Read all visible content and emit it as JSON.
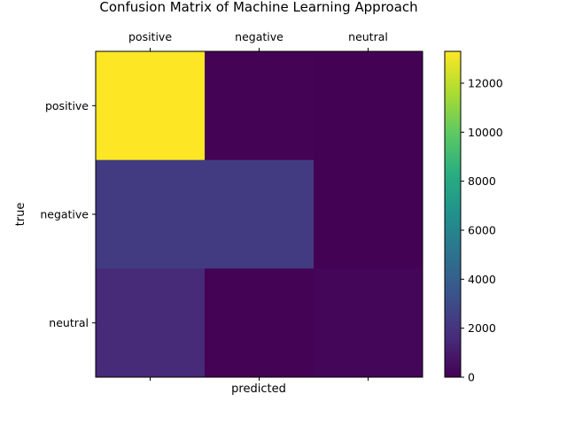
{
  "chart_data": {
    "type": "heatmap",
    "title": "Confusion Matrix of Machine Learning Approach",
    "xlabel": "predicted",
    "ylabel": "true",
    "x_categories": [
      "positive",
      "negative",
      "neutral"
    ],
    "y_categories": [
      "positive",
      "negative",
      "neutral"
    ],
    "values": [
      [
        13300,
        60,
        40
      ],
      [
        2300,
        2300,
        30
      ],
      [
        1550,
        60,
        200
      ]
    ],
    "colormap": "viridis",
    "colorbar": {
      "min": 0,
      "max": 13300,
      "ticks": [
        0,
        2000,
        4000,
        6000,
        8000,
        10000,
        12000
      ],
      "tick_labels": [
        "0",
        "2000",
        "4000",
        "6000",
        "8000",
        "10000",
        "12000"
      ]
    },
    "x_tick_position": "top",
    "grid": false
  }
}
